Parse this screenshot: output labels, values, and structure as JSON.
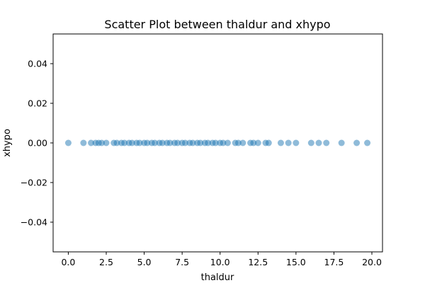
{
  "chart_data": {
    "type": "scatter",
    "title": "Scatter Plot between thaldur and xhypo",
    "xlabel": "thaldur",
    "ylabel": "xhypo",
    "xlim": [
      -1.0,
      20.7
    ],
    "ylim": [
      -0.055,
      0.055
    ],
    "xticks": [
      0.0,
      2.5,
      5.0,
      7.5,
      10.0,
      12.5,
      15.0,
      17.5,
      20.0
    ],
    "xtick_labels": [
      "0.0",
      "2.5",
      "5.0",
      "7.5",
      "10.0",
      "12.5",
      "15.0",
      "17.5",
      "20.0"
    ],
    "yticks": [
      -0.04,
      -0.02,
      0.0,
      0.02,
      0.04
    ],
    "ytick_labels": [
      "−0.04",
      "−0.02",
      "0.00",
      "0.02",
      "0.04"
    ],
    "grid": false,
    "marker_color": "#1f77b4",
    "marker_alpha": 0.5,
    "points": {
      "x": [
        0,
        1,
        1.5,
        1.8,
        2,
        2.2,
        2.5,
        3,
        3.2,
        3.5,
        3.7,
        4,
        4.2,
        4.5,
        4.7,
        5,
        5.2,
        5.5,
        5.7,
        6,
        6.2,
        6.5,
        6.7,
        7,
        7.2,
        7.5,
        7.7,
        8,
        8.2,
        8.5,
        8.7,
        9,
        9.2,
        9.5,
        9.7,
        10,
        10.2,
        10.5,
        11,
        11.2,
        11.5,
        12,
        12.2,
        12.5,
        13,
        13.2,
        14,
        14.5,
        15,
        16,
        16.5,
        17,
        18,
        19,
        19.7
      ],
      "y": [
        0,
        0,
        0,
        0,
        0,
        0,
        0,
        0,
        0,
        0,
        0,
        0,
        0,
        0,
        0,
        0,
        0,
        0,
        0,
        0,
        0,
        0,
        0,
        0,
        0,
        0,
        0,
        0,
        0,
        0,
        0,
        0,
        0,
        0,
        0,
        0,
        0,
        0,
        0,
        0,
        0,
        0,
        0,
        0,
        0,
        0,
        0,
        0,
        0,
        0,
        0,
        0,
        0,
        0,
        0
      ]
    }
  }
}
